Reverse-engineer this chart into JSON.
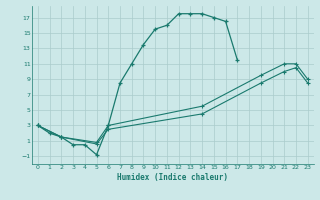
{
  "bg_color": "#cce8e8",
  "grid_color": "#aacccc",
  "line_color": "#1a7a6e",
  "xlabel": "Humidex (Indice chaleur)",
  "xlim": [
    -0.5,
    23.5
  ],
  "ylim": [
    -2.0,
    18.5
  ],
  "xticks": [
    0,
    1,
    2,
    3,
    4,
    5,
    6,
    7,
    8,
    9,
    10,
    11,
    12,
    13,
    14,
    15,
    16,
    17,
    18,
    19,
    20,
    21,
    22,
    23
  ],
  "yticks": [
    -1,
    1,
    3,
    5,
    7,
    9,
    11,
    13,
    15,
    17
  ],
  "curve1_x": [
    0,
    1,
    2,
    3,
    4,
    5,
    6,
    7,
    8,
    9,
    10,
    11,
    12,
    13,
    14,
    15,
    16,
    17
  ],
  "curve1_y": [
    3,
    2,
    1.5,
    0.5,
    0.5,
    -0.8,
    3.0,
    8.5,
    11.0,
    13.5,
    15.5,
    16.0,
    17.5,
    17.5,
    17.5,
    17.0,
    16.5,
    11.5
  ],
  "curve2_x": [
    0,
    2,
    5,
    6,
    14,
    19,
    21,
    22,
    23
  ],
  "curve2_y": [
    3,
    1.5,
    0.8,
    3.0,
    5.5,
    9.5,
    11.0,
    11.0,
    9.0
  ],
  "curve3_x": [
    0,
    2,
    5,
    6,
    14,
    19,
    21,
    22,
    23
  ],
  "curve3_y": [
    3,
    1.5,
    0.6,
    2.5,
    4.5,
    8.5,
    10.0,
    10.5,
    8.5
  ]
}
